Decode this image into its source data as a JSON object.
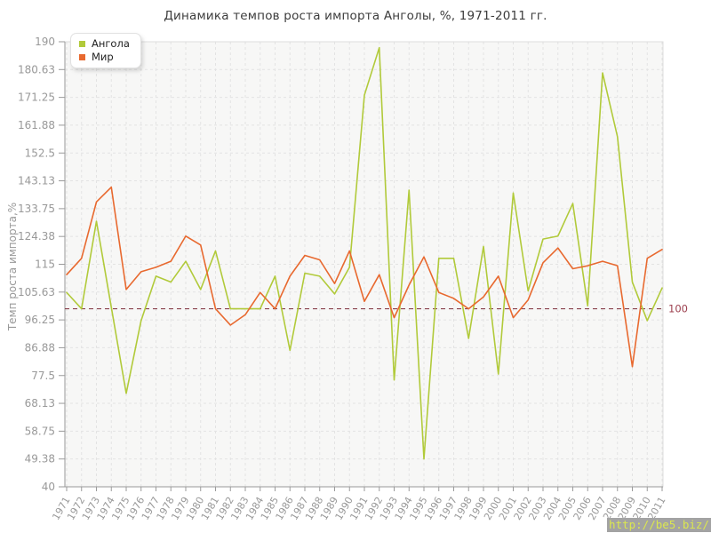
{
  "page": {
    "title": "Динамика темпов роста импорта Анголы, %, 1971-2011 гг."
  },
  "legend": {
    "items": [
      {
        "label": "Ангола",
        "color": "#b1ca3a"
      },
      {
        "label": "Мир",
        "color": "#e8692f"
      }
    ]
  },
  "watermark": {
    "text": "http://be5.biz/",
    "bg": "#a3a3a3",
    "color": "#dbe74f"
  },
  "colors": {
    "plot_bg": "#f7f7f6",
    "grid": "#e3e3e3",
    "axis": "#9a9a9a",
    "tick_label": "#999999",
    "border": "#dcdcdc",
    "reference_line": "#7c2d39",
    "reference_label": "#9c3f4e",
    "title": "#3c3c3c"
  },
  "chart_data": {
    "type": "line",
    "title": "Динамика темпов роста импорта Анголы, %, 1971-2011 гг.",
    "xlabel": "",
    "ylabel": "Темп роста импорта,%",
    "ylim": [
      40,
      190
    ],
    "grid": true,
    "legend_position": "top-left",
    "y_ticks": [
      "190",
      "180.63",
      "171.25",
      "161.88",
      "152.5",
      "143.13",
      "133.75",
      "124.38",
      "115",
      "105.63",
      "96.25",
      "86.88",
      "77.5",
      "68.13",
      "58.75",
      "49.38",
      "40"
    ],
    "categories": [
      1971,
      1972,
      1973,
      1974,
      1975,
      1976,
      1977,
      1978,
      1979,
      1980,
      1981,
      1982,
      1983,
      1984,
      1985,
      1986,
      1987,
      1988,
      1989,
      1990,
      1991,
      1992,
      1993,
      1994,
      1995,
      1996,
      1997,
      1998,
      1999,
      2000,
      2001,
      2002,
      2003,
      2004,
      2005,
      2006,
      2007,
      2008,
      2009,
      2010,
      2011
    ],
    "series": [
      {
        "name": "Ангола",
        "color": "#b1ca3a",
        "values": [
          105.5,
          100,
          129.5,
          100.5,
          71.5,
          96,
          111,
          109,
          116,
          106.5,
          119.5,
          100,
          100,
          100,
          111,
          86,
          112,
          111,
          105,
          114,
          172,
          188,
          76,
          140,
          49.4,
          117,
          117,
          90,
          121,
          78,
          139,
          106,
          123.5,
          124.5,
          135.5,
          101,
          179.5,
          158,
          109,
          96,
          107
        ]
      },
      {
        "name": "Мир",
        "color": "#e8692f",
        "values": [
          111.5,
          117,
          136,
          141,
          106.5,
          112.5,
          114,
          116,
          124.5,
          121.5,
          100,
          94.5,
          98,
          105.5,
          100,
          111,
          118,
          116.5,
          108.5,
          119.5,
          102.5,
          111.5,
          97,
          108,
          117.5,
          105.5,
          103.5,
          100,
          104,
          111,
          97,
          103,
          115.5,
          120.5,
          113.5,
          114.5,
          116,
          114.5,
          80.5,
          117,
          120
        ]
      }
    ],
    "reference_line": {
      "value": 100,
      "label": "100"
    }
  }
}
